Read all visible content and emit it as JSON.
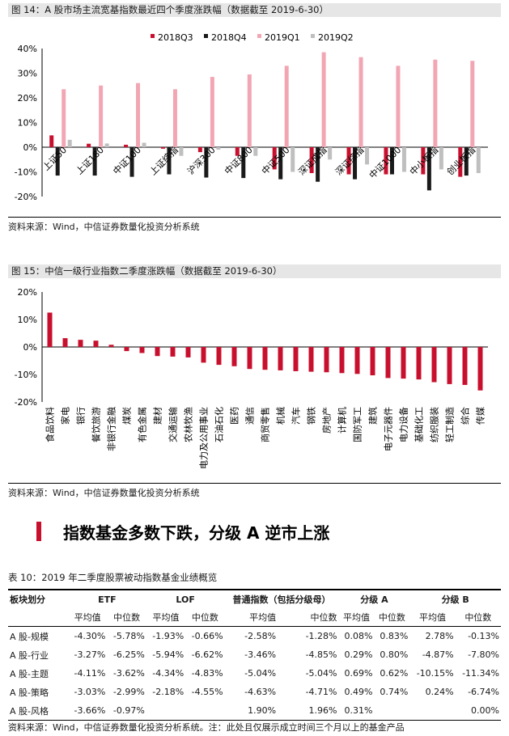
{
  "fig14": {
    "caption": "图 14：A 股市场主流宽基指数最近四个季度涨跌幅（数据截至 2019-6-30）",
    "source": "资料来源：Wind，中信证券数量化投资分析系统"
  },
  "fig15": {
    "caption": "图 15：中信一级行业指数二季度涨跌幅（数据截至 2019-6-30）",
    "source": "资料来源：Wind，中信证券数量化投资分析系统"
  },
  "section": {
    "title": "指数基金多数下跌，分级 A 逆市上涨"
  },
  "table10": {
    "caption": "表 10：2019 年二季度股票被动指数基金业绩概览",
    "header_groups": [
      "板块划分",
      "ETF",
      "LOF",
      "普通指数（包括分级母）",
      "分级 A",
      "分级 B"
    ],
    "sub_headers": [
      "平均值",
      "中位数",
      "平均值",
      "中位数",
      "平均值",
      "中位数",
      "平均值",
      "中位数",
      "平均值",
      "中位数"
    ],
    "rows": [
      [
        "A 股-规模",
        "-4.30%",
        "-5.78%",
        "-1.93%",
        "-0.66%",
        "-2.58%",
        "-1.28%",
        "0.08%",
        "0.83%",
        "2.78%",
        "-0.13%"
      ],
      [
        "A 股-行业",
        "-3.27%",
        "-6.25%",
        "-5.94%",
        "-6.62%",
        "-3.46%",
        "-4.85%",
        "0.29%",
        "0.80%",
        "-4.87%",
        "-7.80%"
      ],
      [
        "A 股-主题",
        "-4.11%",
        "-3.62%",
        "-4.34%",
        "-4.83%",
        "-5.04%",
        "-5.04%",
        "0.69%",
        "0.62%",
        "-10.15%",
        "-11.34%"
      ],
      [
        "A 股-策略",
        "-3.03%",
        "-2.99%",
        "-2.18%",
        "-4.55%",
        "-4.63%",
        "-4.71%",
        "0.49%",
        "0.74%",
        "0.24%",
        "-6.74%"
      ],
      [
        "A 股-风格",
        "-3.66%",
        "-0.97%",
        "",
        "",
        "1.90%",
        "1.96%",
        "0.31%",
        "",
        "",
        "0.00%"
      ]
    ],
    "source": "资料来源：Wind，中信证券数量化投资分析系统。注：此处且仅展示成立时间三个月以上的基金产品"
  },
  "chart_data": [
    {
      "type": "bar",
      "categories": [
        "上证50",
        "上证180",
        "中证100",
        "上证综指",
        "沪深300",
        "中证800",
        "中证500",
        "深证成指",
        "深证综指",
        "中证1000",
        "中小板指",
        "创业板指"
      ],
      "series": [
        {
          "name": "2018Q3",
          "color": "#c8102e",
          "values": [
            4.8,
            1.4,
            1.0,
            -0.6,
            -2.0,
            -3.5,
            -9.0,
            -10.5,
            -11.0,
            -11.0,
            -11.0,
            -12.0
          ]
        },
        {
          "name": "2018Q4",
          "color": "#1a1a1a",
          "values": [
            -11.5,
            -11.5,
            -12.0,
            -11.0,
            -12.3,
            -12.5,
            -13.0,
            -14.0,
            -13.0,
            -11.0,
            -17.5,
            -11.5
          ]
        },
        {
          "name": "2019Q1",
          "color": "#f2a6b3",
          "values": [
            23.5,
            25.0,
            26.0,
            23.5,
            28.5,
            29.5,
            33.0,
            38.5,
            36.5,
            33.0,
            35.5,
            35.0
          ]
        },
        {
          "name": "2019Q2",
          "color": "#bfbfbf",
          "values": [
            3.0,
            1.5,
            1.8,
            -3.5,
            -1.0,
            -3.5,
            -10.0,
            -5.0,
            -7.0,
            -10.0,
            -9.0,
            -10.5
          ]
        }
      ],
      "ylim": [
        -20,
        40
      ],
      "yticks": [
        "-20%",
        "-10%",
        "0%",
        "10%",
        "20%",
        "30%",
        "40%"
      ],
      "legend": "top"
    },
    {
      "type": "bar",
      "categories": [
        "食品饮料",
        "家电",
        "银行",
        "餐饮旅游",
        "非银行金融",
        "煤炭",
        "有色金属",
        "建材",
        "交通运输",
        "农林牧渔",
        "电力及公用事业",
        "石油石化",
        "医药",
        "通信",
        "商贸零售",
        "机械",
        "汽车",
        "钢铁",
        "房地产",
        "计算机",
        "国防军工",
        "建筑",
        "电子元器件",
        "电力设备",
        "基础化工",
        "纺织服装",
        "轻工制造",
        "综合",
        "传媒"
      ],
      "values": [
        12.5,
        3.2,
        2.6,
        2.3,
        0.8,
        -1.5,
        -2.2,
        -3.3,
        -3.5,
        -3.8,
        -5.7,
        -6.5,
        -7.0,
        -8.0,
        -8.3,
        -8.5,
        -8.8,
        -9.0,
        -9.2,
        -9.5,
        -9.8,
        -10.3,
        -11.3,
        -11.5,
        -11.8,
        -12.8,
        -13.5,
        -13.8,
        -15.8
      ],
      "color": "#c8102e",
      "ylim": [
        -20,
        20
      ],
      "yticks": [
        "-20%",
        "-10%",
        "0%",
        "10%",
        "20%"
      ]
    }
  ]
}
